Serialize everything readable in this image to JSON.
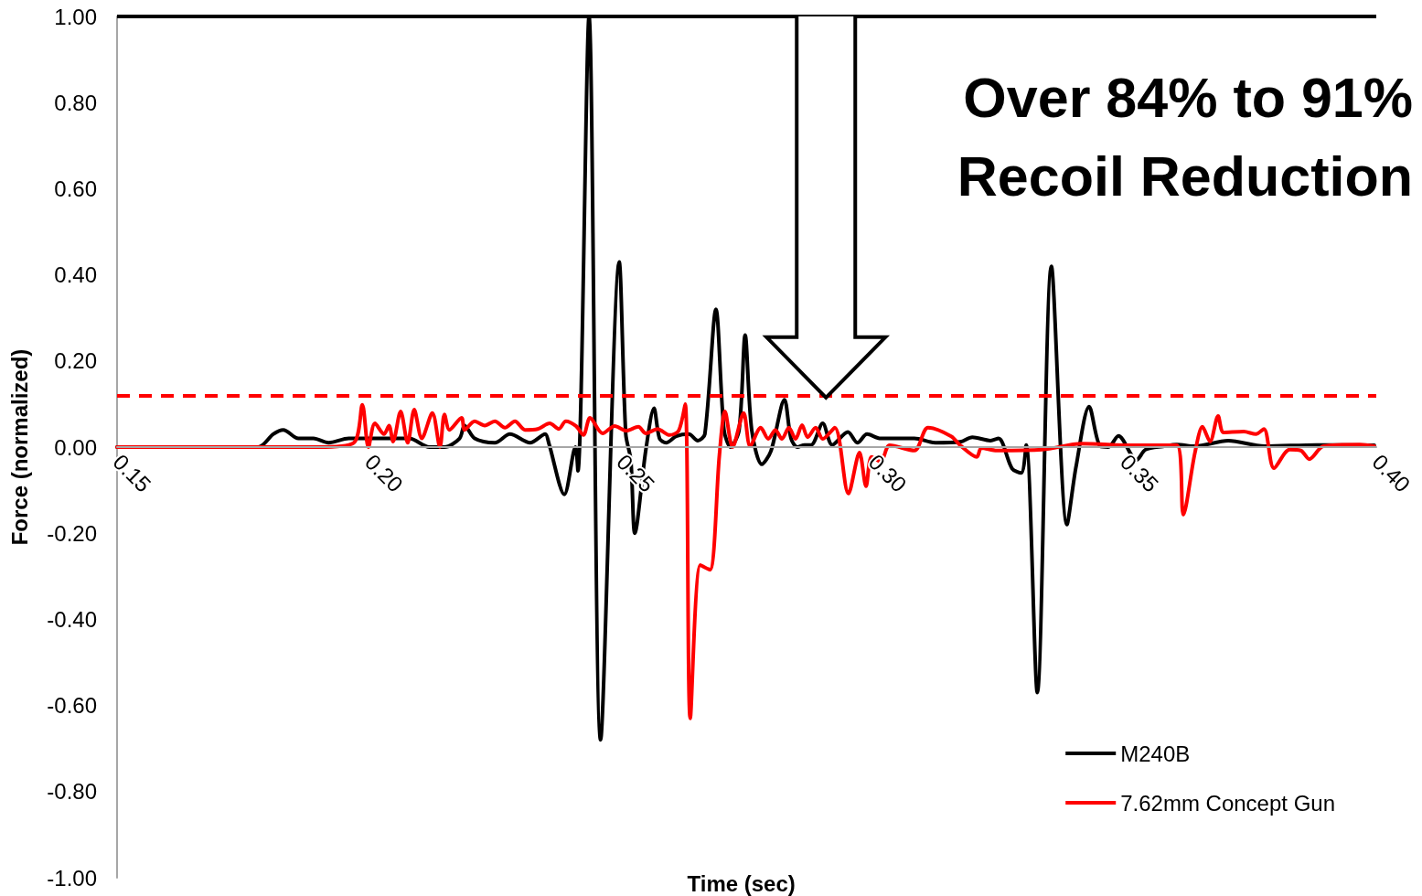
{
  "chart_data": {
    "type": "line",
    "xlabel": "Time (sec)",
    "ylabel": "Force (normalized)",
    "annotations": [
      "Over 84% to 91%",
      "Recoil Reduction"
    ],
    "xlim": [
      0.15,
      0.4
    ],
    "ylim": [
      -1.0,
      1.0
    ],
    "xticks": [
      {
        "value": 0.15,
        "label": "0.15"
      },
      {
        "value": 0.2,
        "label": "0.20"
      },
      {
        "value": 0.25,
        "label": "0.25"
      },
      {
        "value": 0.3,
        "label": "0.30"
      },
      {
        "value": 0.35,
        "label": "0.35"
      },
      {
        "value": 0.4,
        "label": "0.40"
      }
    ],
    "yticks": [
      {
        "value": -1,
        "label": "-1.00"
      },
      {
        "value": -0.8,
        "label": "-0.80"
      },
      {
        "value": -0.6,
        "label": "-0.60"
      },
      {
        "value": -0.4,
        "label": "-0.40"
      },
      {
        "value": -0.2,
        "label": "-0.20"
      },
      {
        "value": 0,
        "label": "0.00"
      },
      {
        "value": 0.2,
        "label": "0.20"
      },
      {
        "value": 0.4,
        "label": "0.40"
      },
      {
        "value": 0.6,
        "label": "0.60"
      },
      {
        "value": 0.8,
        "label": "0.80"
      },
      {
        "value": 1,
        "label": "1.00"
      }
    ],
    "grid": false,
    "legend": "bottom right",
    "marker": "none",
    "line_style": "solid",
    "ref_lines": [
      {
        "axis": "y",
        "value": 1.0,
        "color": "#000000",
        "line_style": "solid"
      },
      {
        "axis": "y",
        "value": 0.115,
        "color": "#ff0000",
        "line_style": "dashed"
      }
    ],
    "series": [
      {
        "name": "M240B",
        "color": "#000000",
        "x": [
          0.15,
          0.178,
          0.181,
          0.183,
          0.186,
          0.189,
          0.192,
          0.196,
          0.2,
          0.205,
          0.208,
          0.212,
          0.215,
          0.218,
          0.219,
          0.221,
          0.225,
          0.228,
          0.232,
          0.235,
          0.2357,
          0.2388,
          0.241,
          0.2415,
          0.2437,
          0.246,
          0.2497,
          0.251,
          0.252,
          0.2528,
          0.255,
          0.2566,
          0.2577,
          0.259,
          0.261,
          0.2635,
          0.2653,
          0.2667,
          0.2689,
          0.2705,
          0.2718,
          0.2735,
          0.2747,
          0.276,
          0.278,
          0.2798,
          0.2825,
          0.2838,
          0.2851,
          0.2865,
          0.2878,
          0.2901,
          0.292,
          0.2951,
          0.297,
          0.2989,
          0.3016,
          0.3083,
          0.3125,
          0.3174,
          0.3198,
          0.3234,
          0.325,
          0.3277,
          0.3295,
          0.3305,
          0.3327,
          0.3355,
          0.3386,
          0.3404,
          0.343,
          0.3452,
          0.3468,
          0.3488,
          0.3524,
          0.3542,
          0.3579,
          0.3604,
          0.364,
          0.3706,
          0.3778,
          0.3882,
          0.3996
        ],
        "values": [
          0,
          0,
          0.03,
          0.04,
          0.02,
          0.02,
          0.01,
          0.02,
          0.02,
          0.02,
          0.02,
          0,
          0,
          0.02,
          0.05,
          0.02,
          0.01,
          0.03,
          0.01,
          0.03,
          0.01,
          -0.11,
          0,
          -0.055,
          1.0,
          -0.68,
          0.43,
          0.03,
          -0.03,
          -0.2,
          -0.005,
          0.09,
          0.02,
          0.01,
          0.025,
          0.03,
          0.015,
          0.03,
          0.32,
          0.04,
          0,
          0.04,
          0.26,
          0.04,
          -0.04,
          -0.01,
          0.11,
          0.02,
          0,
          0.005,
          0.005,
          0.055,
          0.005,
          0.035,
          0.01,
          0.03,
          0.02,
          0.02,
          0.01,
          0.012,
          0.023,
          0.015,
          0.02,
          -0.05,
          -0.06,
          0.005,
          -0.57,
          0.42,
          -0.18,
          -0.045,
          0.094,
          0.002,
          0,
          0.026,
          -0.03,
          -0.006,
          0.002,
          0.006,
          0.002,
          0.015,
          0.002,
          0.005,
          0.004
        ]
      },
      {
        "name": "7.62mm Concept Gun",
        "color": "#ff0000",
        "x": [
          0.15,
          0.19,
          0.197,
          0.1987,
          0.1999,
          0.2012,
          0.203,
          0.204,
          0.2048,
          0.2063,
          0.2077,
          0.209,
          0.2105,
          0.2126,
          0.2141,
          0.215,
          0.216,
          0.2184,
          0.219,
          0.221,
          0.223,
          0.225,
          0.227,
          0.229,
          0.231,
          0.2335,
          0.2359,
          0.2377,
          0.2391,
          0.2411,
          0.2426,
          0.2439,
          0.2464,
          0.2488,
          0.2511,
          0.2535,
          0.255,
          0.2573,
          0.2597,
          0.2615,
          0.2628,
          0.2638,
          0.2658,
          0.2677,
          0.2696,
          0.2707,
          0.2722,
          0.2744,
          0.2757,
          0.2778,
          0.2793,
          0.2807,
          0.282,
          0.2834,
          0.2847,
          0.286,
          0.2871,
          0.2887,
          0.2901,
          0.2925,
          0.2952,
          0.2974,
          0.2987,
          0.2998,
          0.3016,
          0.3034,
          0.3083,
          0.311,
          0.3156,
          0.3174,
          0.3207,
          0.3216,
          0.3247,
          0.3337,
          0.3415,
          0.3519,
          0.3604,
          0.3617,
          0.364,
          0.3655,
          0.367,
          0.3686,
          0.3697,
          0.3737,
          0.3761,
          0.3777,
          0.3797,
          0.3828,
          0.385,
          0.3867,
          0.3895,
          0.3967,
          0.3996
        ],
        "values": [
          0,
          0,
          0.01,
          0.098,
          0,
          0.055,
          0.03,
          0.05,
          0.013,
          0.083,
          0.01,
          0.087,
          0.02,
          0.079,
          0,
          0.076,
          0.04,
          0.068,
          0.04,
          0.06,
          0.05,
          0.06,
          0.045,
          0.06,
          0.04,
          0.042,
          0.055,
          0.042,
          0.06,
          0.049,
          0.028,
          0.068,
          0.032,
          0.049,
          0.038,
          0.047,
          0.032,
          0.042,
          0.028,
          0.038,
          0.1,
          -0.63,
          -0.274,
          -0.285,
          -0.017,
          0.083,
          0,
          0.079,
          0.002,
          0.045,
          0.019,
          0.04,
          0.019,
          0.045,
          0.019,
          0.051,
          0.023,
          0.045,
          0.019,
          0.045,
          -0.108,
          -0.013,
          -0.091,
          -0.023,
          -0.034,
          0.004,
          -0.008,
          0.045,
          0.025,
          0.004,
          -0.023,
          -0.002,
          -0.008,
          -0.006,
          0.008,
          0.004,
          0.004,
          -0.157,
          -0.013,
          0.047,
          0.013,
          0.072,
          0.034,
          0.036,
          0.03,
          0.042,
          -0.049,
          -0.006,
          -0.008,
          -0.028,
          0.002,
          0.006,
          0.002
        ]
      }
    ]
  }
}
